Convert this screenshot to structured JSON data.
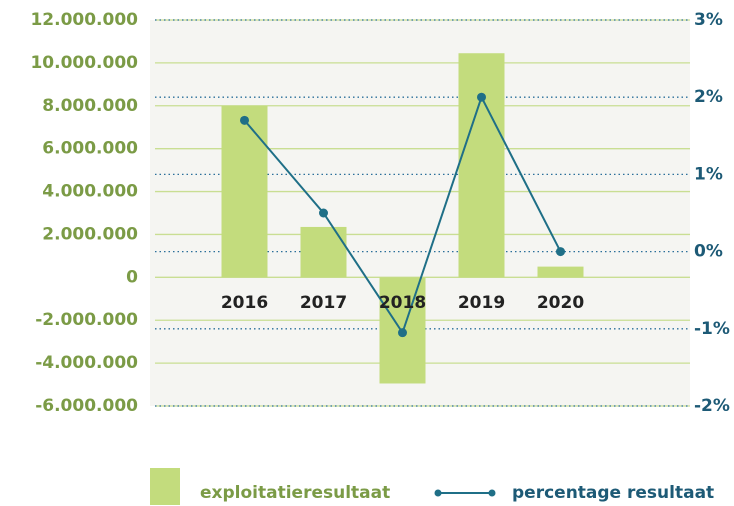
{
  "chart_data": {
    "type": "bar",
    "categories": [
      "2016",
      "2017",
      "2018",
      "2019",
      "2020"
    ],
    "series": [
      {
        "name": "exploitatieresultaat",
        "type": "bar",
        "color": "#c3dc7d",
        "values": [
          8000000,
          2350000,
          -4950000,
          10450000,
          500000
        ]
      },
      {
        "name": "percentage resultaat",
        "type": "line",
        "axis": "y2",
        "color": "#1f6f87",
        "values": [
          1.7,
          0.5,
          -1.05,
          2.0,
          0.0
        ]
      }
    ],
    "ylim": [
      -6000000,
      12000000
    ],
    "yticks": [
      {
        "value": -6000000,
        "label": "-6.000.000"
      },
      {
        "value": -4000000,
        "label": "-4.000.000"
      },
      {
        "value": -2000000,
        "label": "-2.000.000"
      },
      0,
      {
        "value": 2000000,
        "label": "2.000.000"
      },
      {
        "value": 4000000,
        "label": "4.000.000"
      },
      {
        "value": 6000000,
        "label": "6.000.000"
      },
      {
        "value": 8000000,
        "label": "8.000.000"
      },
      {
        "value": 10000000,
        "label": "10.000.000"
      },
      {
        "value": 12000000,
        "label": "12.000.000"
      }
    ],
    "y2lim": [
      -2,
      3
    ],
    "y2ticks": [
      {
        "value": -2,
        "label": "-2%"
      },
      {
        "value": -1,
        "label": "-1%"
      },
      {
        "value": 0,
        "label": "0%"
      },
      {
        "value": 1,
        "label": "1%"
      },
      {
        "value": 2,
        "label": "2%"
      },
      {
        "value": 3,
        "label": "3%"
      }
    ],
    "grid": true
  }
}
